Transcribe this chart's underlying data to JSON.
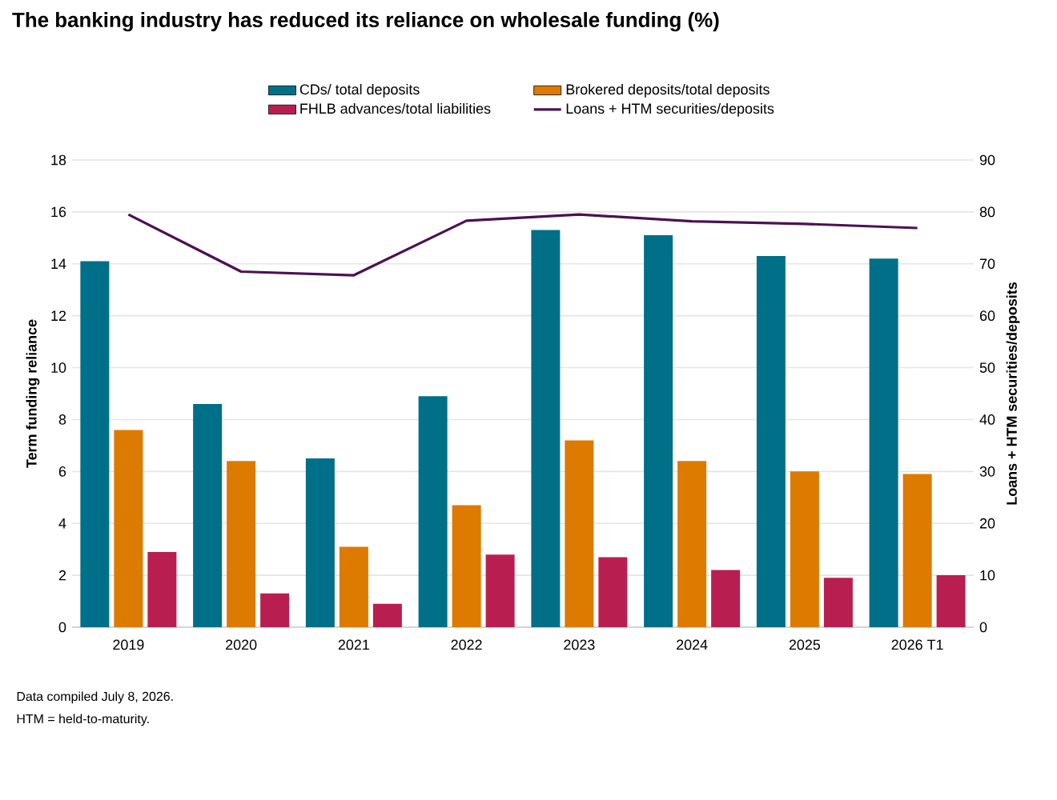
{
  "chart_data": {
    "type": "bar",
    "title": "The banking industry has reduced its reliance on wholesale funding (%)",
    "categories": [
      "2019",
      "2020",
      "2021",
      "2022",
      "2023",
      "2024",
      "2025",
      "2026 T1"
    ],
    "ylabel": "Term funding reliance",
    "y2label": "Loans + HTM securities/deposits",
    "ylim": [
      0,
      18
    ],
    "yticks": [
      0,
      2,
      4,
      6,
      8,
      10,
      12,
      14,
      16,
      18
    ],
    "y2lim": [
      0,
      90
    ],
    "y2ticks": [
      0,
      10,
      20,
      30,
      40,
      50,
      60,
      70,
      80,
      90
    ],
    "grid": "y",
    "legend": "top",
    "series": [
      {
        "name": "CDs/ total deposits",
        "color": "#006f88",
        "values": [
          14.1,
          8.6,
          6.5,
          8.9,
          15.3,
          15.1,
          14.3,
          14.2
        ]
      },
      {
        "name": "Brokered deposits/total deposits",
        "color": "#dd7a00",
        "values": [
          7.6,
          6.4,
          3.1,
          4.7,
          7.2,
          6.4,
          6.0,
          5.9
        ]
      },
      {
        "name": "FHLB advances/total liabilities",
        "color": "#b81f50",
        "values": [
          2.9,
          1.3,
          0.9,
          2.8,
          2.7,
          2.2,
          1.9,
          2.0
        ]
      },
      {
        "name": "Loans + HTM securities/deposits",
        "color": "#4b1251",
        "type": "line",
        "axis": "y2",
        "values": [
          79.5,
          68.5,
          67.8,
          78.3,
          79.5,
          78.2,
          77.7,
          76.9
        ]
      }
    ],
    "annotations": [
      "Data compiled July 8, 2026.",
      "HTM = held-to-maturity."
    ]
  }
}
